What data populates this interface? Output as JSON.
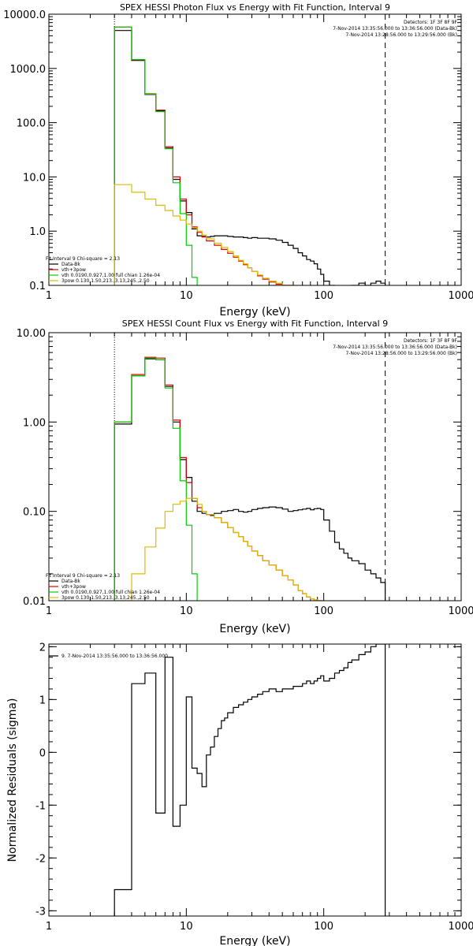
{
  "chart_data": [
    {
      "type": "line",
      "title": "SPEX HESSI Photon Flux vs Energy with Fit Function, Interval 9",
      "xlabel": "Energy (keV)",
      "ylabel": "",
      "xscale": "log",
      "yscale": "log",
      "xlim": [
        1,
        1000
      ],
      "ylim": [
        0.1,
        10000
      ],
      "xticks": [
        {
          "v": 1,
          "label": "1"
        },
        {
          "v": 10,
          "label": "10"
        },
        {
          "v": 100,
          "label": "100"
        },
        {
          "v": 1000,
          "label": "1000"
        }
      ],
      "yticks": [
        {
          "v": 0.1,
          "label": "0.1"
        },
        {
          "v": 1,
          "label": "1.0"
        },
        {
          "v": 10,
          "label": "10.0"
        },
        {
          "v": 100,
          "label": "100.0"
        },
        {
          "v": 1000,
          "label": "1000.0"
        },
        {
          "v": 10000,
          "label": "10000.0"
        }
      ],
      "vlines": [
        {
          "x": 3,
          "style": "dotted"
        },
        {
          "x": 280,
          "style": "dashed"
        }
      ],
      "header_lines": [
        "Detectors: 1F 3F 8F 9F",
        "7-Nov-2014 13:35:56.000 to 13:36:56.000 (Data-Bk)",
        "7-Nov-2014 13:28:56.000 to 13:29:56.000 (Bk)"
      ],
      "legend_title": "Fit Interval 9   Chi-square = 2.13",
      "legend": [
        {
          "color": "#000000",
          "label": "Data-Bk"
        },
        {
          "color": "#dd0000",
          "label": "vth+3pow"
        },
        {
          "color": "#00cc00",
          "label": "vth 0.0190,0.927,1.00  full chian 1.26e-04"
        },
        {
          "color": "#ddbb00",
          "label": "3pow 0.130,1.50,213.,3.13,245.,2.50"
        }
      ],
      "series": [
        {
          "name": "Data-Bk",
          "color": "#000000",
          "edges": [
            3,
            4,
            5,
            6,
            7,
            8,
            9,
            10,
            11,
            12,
            13,
            14,
            15,
            16,
            18,
            20,
            22,
            24,
            26,
            28,
            30,
            33,
            36,
            40,
            45,
            50,
            55,
            60,
            65,
            70,
            75,
            80,
            85,
            90,
            95,
            100,
            110,
            120,
            130,
            140,
            150,
            160,
            180,
            200,
            220,
            240,
            260,
            280
          ],
          "values": [
            5000,
            1400,
            330,
            165,
            34,
            9,
            3.6,
            2.2,
            1.1,
            0.82,
            0.8,
            0.78,
            0.8,
            0.82,
            0.82,
            0.8,
            0.78,
            0.78,
            0.76,
            0.74,
            0.76,
            0.74,
            0.74,
            0.72,
            0.68,
            0.62,
            0.55,
            0.48,
            0.4,
            0.35,
            0.3,
            0.28,
            0.25,
            0.2,
            0.16,
            0.12,
            0.1,
            0.09,
            0.09,
            0.085,
            0.083,
            0.1,
            0.11,
            0.1,
            0.11,
            0.12,
            0.11
          ]
        },
        {
          "name": "vth+3pow",
          "color": "#dd0000",
          "edges": [
            3,
            4,
            5,
            6,
            7,
            8,
            9,
            10,
            11,
            12,
            13,
            14,
            16,
            18,
            20,
            22,
            24,
            26,
            28,
            30,
            33,
            36,
            40,
            45,
            50,
            55,
            60
          ],
          "values": [
            5800,
            1450,
            340,
            170,
            36,
            10,
            3.9,
            2.0,
            1.2,
            0.95,
            0.78,
            0.66,
            0.55,
            0.46,
            0.39,
            0.33,
            0.28,
            0.24,
            0.21,
            0.18,
            0.15,
            0.13,
            0.115,
            0.105,
            0.1,
            0.1
          ]
        },
        {
          "name": "vth",
          "color": "#00cc00",
          "edges": [
            3,
            4,
            5,
            6,
            7,
            8,
            9,
            10,
            11,
            12
          ],
          "values": [
            5800,
            1450,
            335,
            160,
            33,
            7.8,
            2.1,
            0.55,
            0.14
          ]
        },
        {
          "name": "3pow",
          "color": "#ddbb00",
          "edges": [
            3,
            4,
            5,
            6,
            7,
            8,
            9,
            10,
            11,
            12,
            13,
            14,
            16,
            18,
            20,
            22,
            24,
            26,
            28,
            30,
            33,
            36,
            40,
            45,
            50,
            55,
            60,
            65
          ],
          "values": [
            7.2,
            5.2,
            3.9,
            3.0,
            2.4,
            1.9,
            1.6,
            1.35,
            1.15,
            1.0,
            0.85,
            0.72,
            0.6,
            0.5,
            0.42,
            0.35,
            0.29,
            0.25,
            0.21,
            0.18,
            0.155,
            0.135,
            0.12,
            0.11,
            0.1,
            0.1,
            0.1
          ]
        }
      ]
    },
    {
      "type": "line",
      "title": "SPEX HESSI Count Flux vs Energy with Fit Function, Interval 9",
      "xlabel": "Energy (keV)",
      "ylabel": "",
      "xscale": "log",
      "yscale": "log",
      "xlim": [
        1,
        1000
      ],
      "ylim": [
        0.01,
        10
      ],
      "xticks": [
        {
          "v": 1,
          "label": "1"
        },
        {
          "v": 10,
          "label": "10"
        },
        {
          "v": 100,
          "label": "100"
        },
        {
          "v": 1000,
          "label": "1000"
        }
      ],
      "yticks": [
        {
          "v": 0.01,
          "label": "0.01"
        },
        {
          "v": 0.1,
          "label": "0.10"
        },
        {
          "v": 1,
          "label": "1.00"
        },
        {
          "v": 10,
          "label": "10.00"
        }
      ],
      "vlines": [
        {
          "x": 3,
          "style": "dotted"
        },
        {
          "x": 280,
          "style": "dashed"
        }
      ],
      "header_lines": [
        "Detectors: 1F 3F 8F 9F",
        "7-Nov-2014 13:35:56.000 to 13:36:56.000 (Data-Bk)",
        "7-Nov-2014 13:28:56.000 to 13:29:56.000 (Bk)"
      ],
      "legend_title": "Fit Interval 9   Chi-square = 2.13",
      "legend": [
        {
          "color": "#000000",
          "label": "Data-Bk"
        },
        {
          "color": "#dd0000",
          "label": "vth+3pow"
        },
        {
          "color": "#00cc00",
          "label": "vth 0.0190,0.927,1.00  full chian 1.26e-04"
        },
        {
          "color": "#ddbb00",
          "label": "3pow 0.130,1.50,213.,3.13,245.,2.50"
        }
      ],
      "series": [
        {
          "name": "Data-Bk",
          "color": "#000000",
          "edges": [
            3,
            4,
            5,
            6,
            7,
            8,
            9,
            10,
            11,
            12,
            13,
            14,
            15,
            16,
            18,
            20,
            22,
            24,
            26,
            28,
            30,
            33,
            36,
            40,
            45,
            50,
            55,
            60,
            65,
            70,
            75,
            80,
            85,
            90,
            95,
            100,
            110,
            120,
            130,
            140,
            150,
            160,
            180,
            200,
            220,
            240,
            260,
            280
          ],
          "values": [
            0.95,
            3.3,
            5.1,
            5.0,
            2.5,
            1.0,
            0.38,
            0.24,
            0.13,
            0.1,
            0.095,
            0.092,
            0.09,
            0.095,
            0.1,
            0.102,
            0.105,
            0.1,
            0.098,
            0.1,
            0.105,
            0.108,
            0.11,
            0.112,
            0.11,
            0.106,
            0.1,
            0.102,
            0.104,
            0.106,
            0.108,
            0.104,
            0.107,
            0.108,
            0.105,
            0.08,
            0.06,
            0.045,
            0.038,
            0.034,
            0.03,
            0.028,
            0.026,
            0.022,
            0.02,
            0.018,
            0.016
          ]
        },
        {
          "name": "vth+3pow",
          "color": "#dd0000",
          "edges": [
            3,
            4,
            5,
            6,
            7,
            8,
            9,
            10,
            11,
            12,
            13,
            14,
            16,
            18,
            20,
            22,
            24,
            26,
            28,
            30,
            33,
            36,
            40,
            45,
            50,
            55,
            60,
            65,
            70,
            75,
            80,
            85,
            90,
            95,
            100
          ],
          "values": [
            1.0,
            3.4,
            5.3,
            5.2,
            2.6,
            1.05,
            0.4,
            0.21,
            0.14,
            0.11,
            0.1,
            0.092,
            0.085,
            0.075,
            0.066,
            0.058,
            0.052,
            0.046,
            0.041,
            0.036,
            0.032,
            0.028,
            0.025,
            0.022,
            0.019,
            0.017,
            0.015,
            0.013,
            0.012,
            0.011,
            0.0105,
            0.0102,
            0.01,
            0.01
          ]
        },
        {
          "name": "vth",
          "color": "#00cc00",
          "edges": [
            3,
            4,
            5,
            6,
            7,
            8,
            9,
            10,
            11,
            12
          ],
          "values": [
            1.0,
            3.3,
            5.2,
            5.0,
            2.4,
            0.85,
            0.22,
            0.07,
            0.02
          ]
        },
        {
          "name": "3pow",
          "color": "#ddbb00",
          "edges": [
            3,
            4,
            5,
            6,
            7,
            8,
            9,
            10,
            11,
            12,
            13,
            14,
            16,
            18,
            20,
            22,
            24,
            26,
            28,
            30,
            33,
            36,
            40,
            45,
            50,
            55,
            60,
            65,
            70,
            75,
            80,
            85,
            90,
            95,
            100
          ],
          "values": [
            0.01,
            0.02,
            0.04,
            0.065,
            0.1,
            0.12,
            0.13,
            0.14,
            0.14,
            0.12,
            0.1,
            0.092,
            0.085,
            0.075,
            0.066,
            0.058,
            0.052,
            0.046,
            0.041,
            0.036,
            0.032,
            0.028,
            0.025,
            0.022,
            0.019,
            0.017,
            0.015,
            0.013,
            0.012,
            0.011,
            0.0105,
            0.0102,
            0.01,
            0.01
          ]
        }
      ]
    },
    {
      "type": "line",
      "title": "",
      "xlabel": "Energy (keV)",
      "ylabel": "Normalized Residuals (sigma)",
      "xscale": "log",
      "yscale": "linear",
      "xlim": [
        1,
        1000
      ],
      "ylim": [
        -3.1,
        2.05
      ],
      "xticks": [
        {
          "v": 1,
          "label": "1"
        },
        {
          "v": 10,
          "label": "10"
        },
        {
          "v": 100,
          "label": "100"
        },
        {
          "v": 1000,
          "label": "1000"
        }
      ],
      "yticks": [
        {
          "v": -3,
          "label": "-3"
        },
        {
          "v": -2,
          "label": "-2"
        },
        {
          "v": -1,
          "label": "-1"
        },
        {
          "v": 0,
          "label": "0"
        },
        {
          "v": 1,
          "label": "1"
        },
        {
          "v": 2,
          "label": "2"
        }
      ],
      "legend": [
        {
          "color": "#000000",
          "label": "9.  7-Nov-2014 13:35:56.000 to 13:36:56.000"
        }
      ],
      "series": [
        {
          "name": "",
          "color": "#000000",
          "edges": [
            3,
            4,
            5,
            6,
            7,
            8,
            9,
            10,
            11,
            12,
            13,
            14,
            15,
            16,
            17,
            18,
            19,
            20,
            22,
            24,
            26,
            28,
            30,
            33,
            36,
            40,
            45,
            50,
            55,
            60,
            65,
            70,
            75,
            80,
            85,
            90,
            95,
            100,
            110,
            120,
            130,
            140,
            150,
            160,
            180,
            200,
            220,
            240,
            260,
            280
          ],
          "values": [
            -2.6,
            1.3,
            1.5,
            -1.15,
            1.8,
            -1.4,
            -1.0,
            1.05,
            -0.3,
            -0.4,
            -0.65,
            -0.05,
            0.1,
            0.3,
            0.45,
            0.6,
            0.65,
            0.75,
            0.85,
            0.9,
            0.95,
            1.0,
            1.05,
            1.1,
            1.15,
            1.2,
            1.15,
            1.2,
            1.2,
            1.25,
            1.25,
            1.3,
            1.35,
            1.3,
            1.35,
            1.4,
            1.45,
            1.35,
            1.4,
            1.5,
            1.55,
            1.6,
            1.7,
            1.75,
            1.85,
            1.9,
            2.0,
            2.05,
            2.05
          ]
        }
      ]
    }
  ]
}
